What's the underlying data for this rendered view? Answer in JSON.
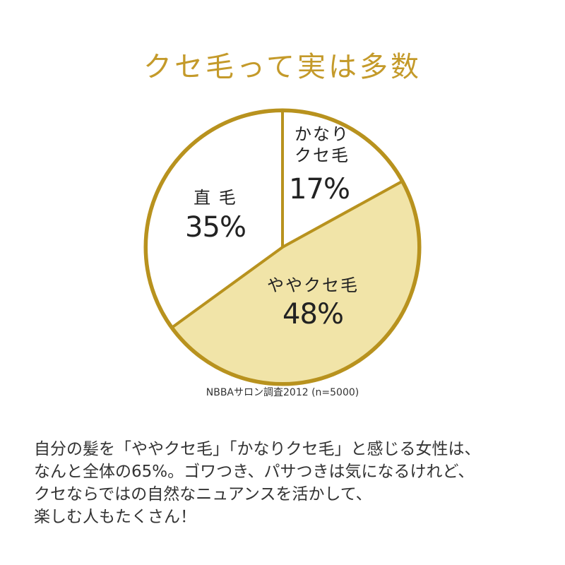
{
  "chart_data": {
    "type": "pie",
    "title": "クセ毛って実は多数",
    "categories": [
      "かなり\nクセ毛",
      "ややクセ毛",
      "直 毛"
    ],
    "values": [
      17,
      48,
      35
    ],
    "value_labels": [
      "17%",
      "48%",
      "35%"
    ],
    "colors": [
      "#ffffff",
      "#f1e4a8",
      "#ffffff"
    ],
    "edge_color": "#b8921e",
    "source": "NBBAサロン調査2012 (n=5000)"
  },
  "body": [
    "自分の髪を「ややクセ毛」「かなりクセ毛」と感じる女性は、",
    "なんと全体の65%。ゴワつき、パサつきは気になるけれど、",
    "クセならではの自然なニュアンスを活かして、",
    "楽しむ人もたくさん！"
  ]
}
